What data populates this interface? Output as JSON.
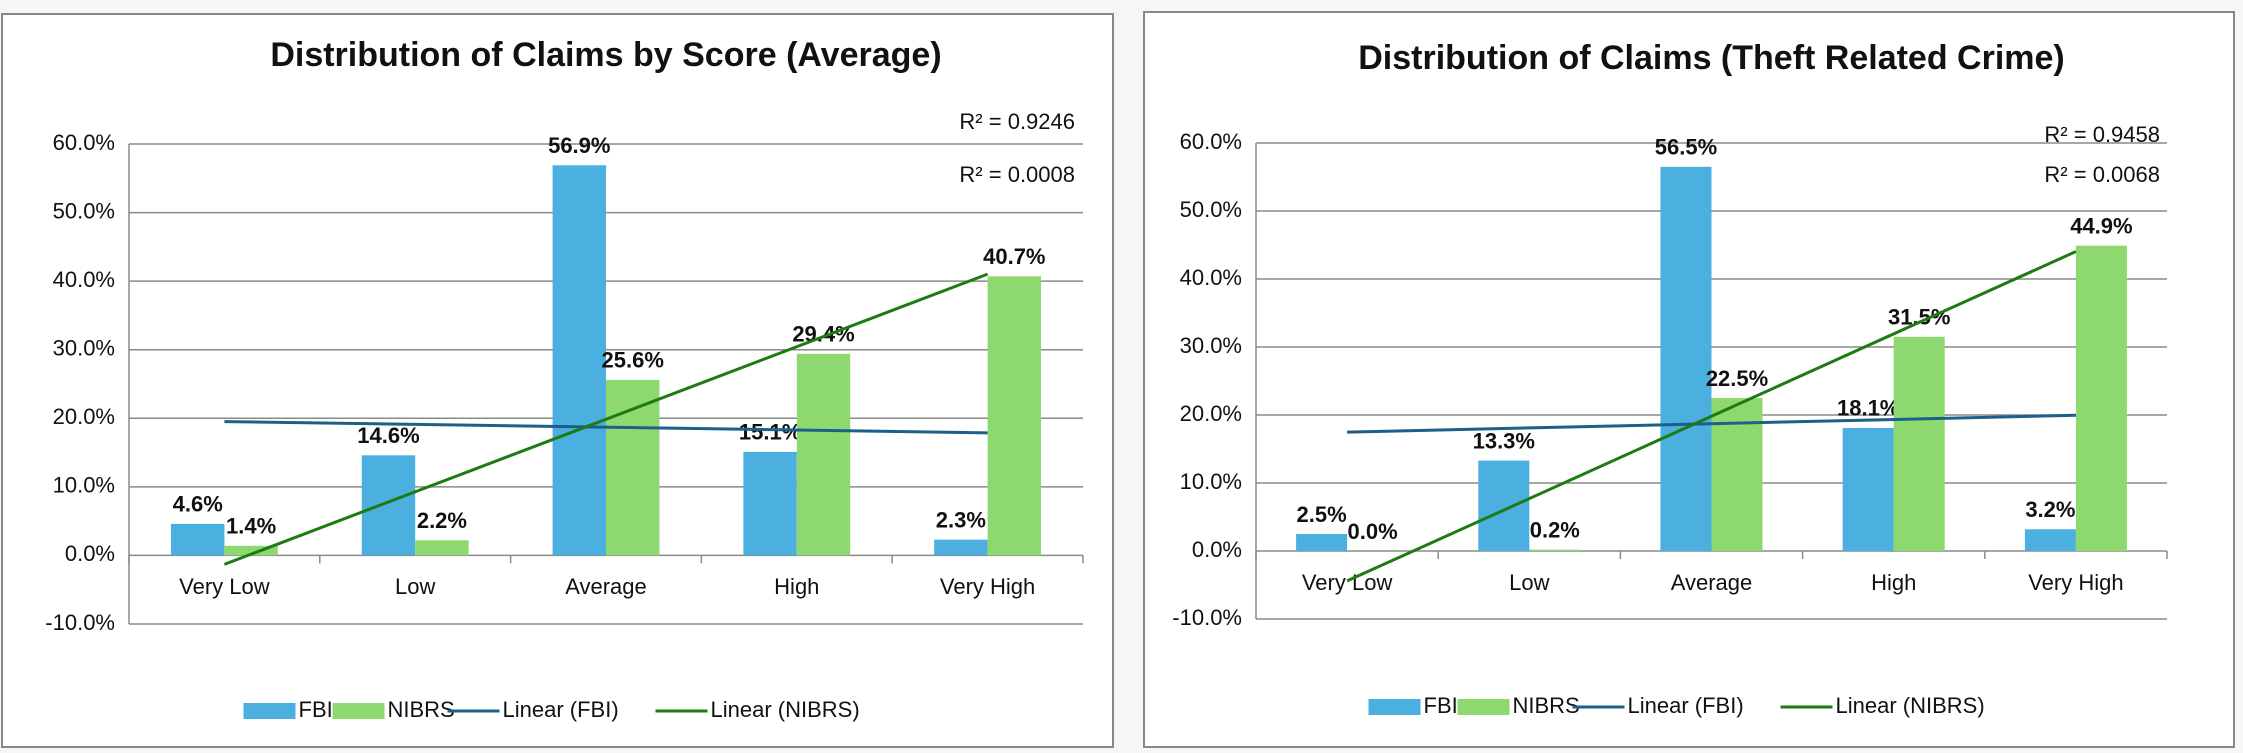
{
  "chart_data": [
    {
      "type": "bar",
      "title": "Distribution of Claims by Score (Average)",
      "categories": [
        "Very Low",
        "Low",
        "Average",
        "High",
        "Very High"
      ],
      "series": [
        {
          "name": "FBI",
          "color": "#4bafe0",
          "label_color": "#2f86c9",
          "values": [
            4.6,
            14.6,
            56.9,
            15.1,
            2.3
          ],
          "value_labels": [
            "4.6%",
            "14.6%",
            "56.9%",
            "15.1%",
            "2.3%"
          ],
          "trendline": {
            "name": "Linear (FBI)",
            "color": "#1d5f8a",
            "r_squared_label": "R² = 0.0008"
          }
        },
        {
          "name": "NIBRS",
          "color": "#8ed96f",
          "label_color": "#2b7a1c",
          "values": [
            1.4,
            2.2,
            25.6,
            29.4,
            40.7
          ],
          "value_labels": [
            "1.4%",
            "2.2%",
            "25.6%",
            "29.4%",
            "40.7%"
          ],
          "trendline": {
            "name": "Linear (NIBRS)",
            "color": "#1e7a12",
            "r_squared_label": "R² = 0.9246"
          }
        }
      ],
      "ylim": [
        -10,
        60
      ],
      "yticks": [
        {
          "value": -10,
          "label": "-10.0%"
        },
        {
          "value": 0,
          "label": "0.0%"
        },
        {
          "value": 10,
          "label": "10.0%"
        },
        {
          "value": 20,
          "label": "20.0%"
        },
        {
          "value": 30,
          "label": "30.0%"
        },
        {
          "value": 40,
          "label": "40.0%"
        },
        {
          "value": 50,
          "label": "50.0%"
        },
        {
          "value": 60,
          "label": "60.0%"
        }
      ],
      "grid": true,
      "legend": "bottom"
    },
    {
      "type": "bar",
      "title": "Distribution of Claims (Theft Related Crime)",
      "categories": [
        "Very Low",
        "Low",
        "Average",
        "High",
        "Very High"
      ],
      "series": [
        {
          "name": "FBI",
          "color": "#4bafe0",
          "label_color": "#2f86c9",
          "values": [
            2.5,
            13.3,
            56.5,
            18.1,
            3.2
          ],
          "value_labels": [
            "2.5%",
            "13.3%",
            "56.5%",
            "18.1%",
            "3.2%"
          ],
          "trendline": {
            "name": "Linear (FBI)",
            "color": "#1d5f8a",
            "r_squared_label": "R² = 0.0068"
          }
        },
        {
          "name": "NIBRS",
          "color": "#8ed96f",
          "label_color": "#2b7a1c",
          "values": [
            0.0,
            0.2,
            22.5,
            31.5,
            44.9
          ],
          "value_labels": [
            "0.0%",
            "0.2%",
            "22.5%",
            "31.5%",
            "44.9%"
          ],
          "trendline": {
            "name": "Linear (NIBRS)",
            "color": "#1e7a12",
            "r_squared_label": "R² = 0.9458"
          }
        }
      ],
      "ylim": [
        -10,
        60
      ],
      "yticks": [
        {
          "value": -10,
          "label": "-10.0%"
        },
        {
          "value": 0,
          "label": "0.0%"
        },
        {
          "value": 10,
          "label": "10.0%"
        },
        {
          "value": 20,
          "label": "20.0%"
        },
        {
          "value": 30,
          "label": "30.0%"
        },
        {
          "value": 40,
          "label": "40.0%"
        },
        {
          "value": 50,
          "label": "50.0%"
        },
        {
          "value": 60,
          "label": "60.0%"
        }
      ],
      "grid": true,
      "legend": "bottom"
    }
  ]
}
